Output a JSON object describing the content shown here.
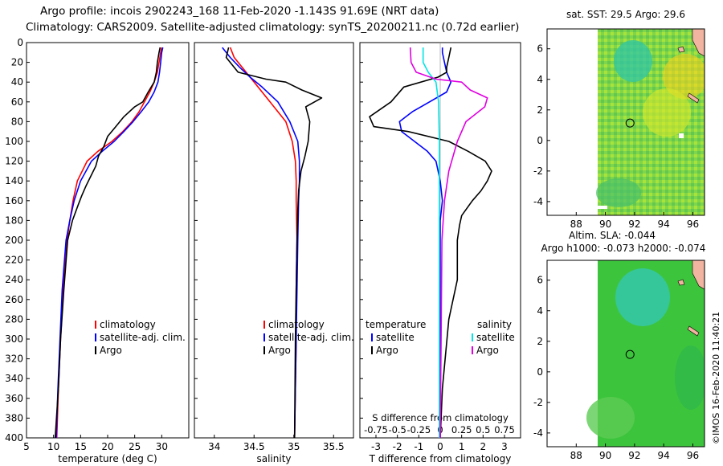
{
  "header": {
    "title_line1": "Argo profile: incois 2902243_168 11-Feb-2020 -1.143S 91.69E (NRT data)",
    "title_line2": "Climatology: CARS2009. Satellite-adjusted climatology: synTS_20200211.nc (0.72d earlier)"
  },
  "footer": {
    "stamp": "©IMOS 16-Feb-2020 11:40:21"
  },
  "colors": {
    "climatology": "#ff0000",
    "satellite": "#0000ff",
    "argo": "#000000",
    "cyan": "#00e5e5",
    "magenta": "#e000e0"
  },
  "chart_data": [
    {
      "type": "line",
      "id": "temperature",
      "xlabel": "temperature (deg C)",
      "ylabel": "",
      "xlim": [
        5,
        35
      ],
      "ylim": [
        400,
        0
      ],
      "xticks": [
        "5",
        "10",
        "15",
        "20",
        "25",
        "30"
      ],
      "yticks": [
        "0",
        "20",
        "40",
        "60",
        "80",
        "100",
        "120",
        "140",
        "160",
        "180",
        "200",
        "220",
        "240",
        "260",
        "280",
        "300",
        "320",
        "340",
        "360",
        "380",
        "400"
      ],
      "legend": [
        "climatology",
        "satellite-adj. clim.",
        "Argo"
      ],
      "series": [
        {
          "name": "climatology",
          "x": [
            30.0,
            29.8,
            29.5,
            29.2,
            28.6,
            27.8,
            26.8,
            25.8,
            24.5,
            22.8,
            20.8,
            18.2,
            16.2,
            14.4,
            13.6,
            13.0,
            12.5,
            11.8,
            11.3,
            10.9,
            10.6
          ],
          "y": [
            5,
            10,
            20,
            30,
            40,
            50,
            60,
            70,
            80,
            90,
            100,
            110,
            120,
            140,
            160,
            180,
            200,
            250,
            300,
            350,
            400
          ]
        },
        {
          "name": "satellite-adj. clim.",
          "x": [
            30.2,
            30.0,
            29.8,
            29.6,
            29.3,
            28.6,
            27.6,
            26.2,
            24.7,
            23.0,
            21.2,
            19.0,
            17.0,
            15.0,
            13.8,
            13.0,
            12.3,
            11.6,
            11.2,
            10.8,
            10.5
          ],
          "y": [
            5,
            10,
            20,
            30,
            40,
            50,
            60,
            70,
            80,
            90,
            100,
            110,
            120,
            140,
            160,
            180,
            200,
            250,
            300,
            350,
            400
          ]
        },
        {
          "name": "Argo",
          "x": [
            29.7,
            29.5,
            29.2,
            29.0,
            28.6,
            27.5,
            26.5,
            25.0,
            23.0,
            21.5,
            20.0,
            19.3,
            18.3,
            17.8,
            16.9,
            16.0,
            15.2,
            14.5,
            13.5,
            12.6,
            11.9,
            11.3,
            10.9,
            10.3
          ],
          "y": [
            5,
            10,
            20,
            30,
            40,
            50,
            60,
            65,
            75,
            85,
            95,
            105,
            115,
            125,
            135,
            145,
            155,
            165,
            180,
            200,
            250,
            300,
            350,
            400
          ]
        }
      ]
    },
    {
      "type": "line",
      "id": "salinity",
      "xlabel": "salinity",
      "xlim": [
        33.75,
        35.75
      ],
      "ylim": [
        400,
        0
      ],
      "xticks": [
        "34",
        "34.5",
        "35",
        "35.5"
      ],
      "legend": [
        "climatology",
        "satellite-adj. clim.",
        "Argo"
      ],
      "series": [
        {
          "name": "climatology",
          "x": [
            34.2,
            34.25,
            34.35,
            34.45,
            34.55,
            34.7,
            34.9,
            34.98,
            35.02,
            35.03,
            35.03,
            35.04,
            35.03,
            35.03,
            35.02,
            35.01
          ],
          "y": [
            5,
            15,
            25,
            35,
            45,
            60,
            80,
            100,
            120,
            140,
            160,
            200,
            250,
            300,
            350,
            400
          ]
        },
        {
          "name": "satellite-adj. clim.",
          "x": [
            34.1,
            34.2,
            34.32,
            34.45,
            34.6,
            34.8,
            34.95,
            35.05,
            35.07,
            35.07,
            35.06,
            35.05,
            35.04,
            35.03,
            35.02,
            35.01
          ],
          "y": [
            5,
            15,
            25,
            35,
            45,
            60,
            80,
            100,
            120,
            140,
            160,
            200,
            250,
            300,
            350,
            400
          ]
        },
        {
          "name": "Argo",
          "x": [
            34.18,
            34.15,
            34.3,
            34.65,
            34.9,
            35.1,
            35.35,
            35.15,
            35.2,
            35.18,
            35.14,
            35.09,
            35.06,
            35.05,
            35.04,
            35.03,
            35.02,
            35.01
          ],
          "y": [
            5,
            15,
            30,
            37,
            40,
            48,
            56,
            65,
            80,
            100,
            115,
            130,
            150,
            170,
            200,
            250,
            300,
            400
          ]
        }
      ]
    },
    {
      "type": "line",
      "id": "difference",
      "xlabel": "T difference from climatology",
      "xlabel_top": "S difference from climatology",
      "xlim": [
        -3.75,
        3.75
      ],
      "ylim": [
        400,
        0
      ],
      "xticks": [
        "-3",
        "-2",
        "-1",
        "0",
        "1",
        "2",
        "3"
      ],
      "s_ticks": [
        "-0.75",
        "-0.5",
        "-0.25",
        "0",
        "0.25",
        "0.5",
        "0.75"
      ],
      "legend_left_title": "temperature",
      "legend_right_title": "salinity",
      "legend_left": [
        "satellite",
        "Argo"
      ],
      "legend_right": [
        "satellite",
        "Argo"
      ],
      "series": [
        {
          "name": "T satellite",
          "x": [
            0.1,
            0.1,
            0.2,
            0.3,
            0.5,
            0.3,
            -0.5,
            -1.3,
            -1.9,
            -1.8,
            -1.2,
            -0.6,
            -0.2,
            0.0,
            0.1,
            0.0,
            0.0,
            0.0,
            0.0,
            0.0
          ],
          "y": [
            5,
            10,
            20,
            30,
            40,
            50,
            60,
            70,
            80,
            90,
            100,
            110,
            120,
            140,
            160,
            180,
            200,
            250,
            300,
            400
          ]
        },
        {
          "name": "T Argo",
          "x": [
            0.5,
            0.4,
            0.3,
            0.3,
            -0.1,
            -1.7,
            -2.3,
            -3.3,
            -3.1,
            -1.5,
            0.4,
            1.3,
            2.1,
            2.4,
            2.2,
            1.9,
            1.5,
            1.0,
            0.9,
            0.8,
            0.8,
            0.4,
            0.1,
            0.0
          ],
          "y": [
            5,
            15,
            25,
            30,
            35,
            45,
            60,
            75,
            85,
            90,
            100,
            110,
            120,
            130,
            140,
            150,
            160,
            175,
            185,
            200,
            240,
            280,
            350,
            400
          ]
        },
        {
          "name": "S satellite",
          "x": [
            -0.2,
            -0.2,
            -0.14,
            -0.05,
            -0.02,
            -0.01,
            -0.01,
            -0.01,
            -0.01,
            -0.01
          ],
          "y": [
            5,
            20,
            30,
            40,
            60,
            100,
            160,
            200,
            300,
            400
          ]
        },
        {
          "name": "S Argo",
          "x": [
            -0.35,
            -0.34,
            -0.28,
            -0.05,
            0.25,
            0.35,
            0.55,
            0.52,
            0.3,
            0.2,
            0.1,
            0.05,
            0.02,
            0.01,
            0.0
          ],
          "y": [
            5,
            20,
            30,
            37,
            40,
            48,
            56,
            65,
            80,
            100,
            130,
            160,
            200,
            300,
            400
          ]
        }
      ]
    },
    {
      "type": "heatmap",
      "id": "sst_map",
      "title": "sat. SST: 29.5 Argo: 29.6",
      "xlim": [
        86,
        96.8
      ],
      "ylim": [
        -4.9,
        7.3
      ],
      "xticks": [
        "88",
        "90",
        "92",
        "94",
        "96"
      ],
      "yticks": [
        "6",
        "4",
        "2",
        "0",
        "-2",
        "-4"
      ],
      "float_position": {
        "lon": 91.69,
        "lat": 1.14
      }
    },
    {
      "type": "heatmap",
      "id": "sla_map",
      "title_line1": "Altim. SLA: -0.044",
      "title_line2": "Argo h1000: -0.073 h2000: -0.074",
      "xlim": [
        86,
        96.8
      ],
      "ylim": [
        -4.9,
        7.3
      ],
      "xticks": [
        "88",
        "90",
        "92",
        "94",
        "96"
      ],
      "yticks": [
        "6",
        "4",
        "2",
        "0",
        "-2",
        "-4"
      ],
      "float_position": {
        "lon": 91.69,
        "lat": 1.14
      }
    }
  ]
}
